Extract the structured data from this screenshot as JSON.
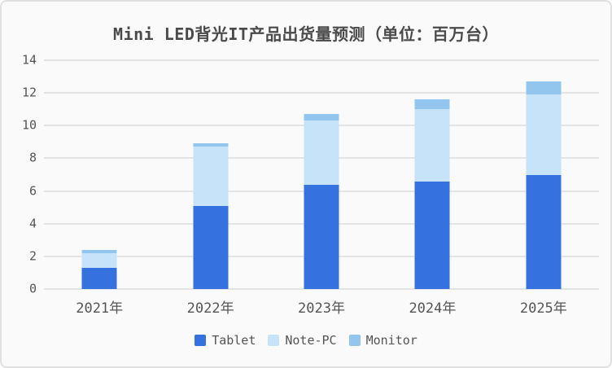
{
  "chart_data": {
    "type": "bar",
    "stacked": true,
    "title": "Mini LED背光IT产品出货量预测（单位：百万台）",
    "categories": [
      "2021年",
      "2022年",
      "2023年",
      "2024年",
      "2025年"
    ],
    "series": [
      {
        "name": "Tablet",
        "color": "#3671e0",
        "values": [
          1.3,
          5.1,
          6.4,
          6.6,
          7.0
        ]
      },
      {
        "name": "Note-PC",
        "color": "#c7e3fa",
        "values": [
          0.9,
          3.6,
          3.9,
          4.4,
          4.9
        ]
      },
      {
        "name": "Monitor",
        "color": "#93c6ef",
        "values": [
          0.2,
          0.2,
          0.4,
          0.6,
          0.8
        ]
      }
    ],
    "xlabel": "",
    "ylabel": "",
    "ylim": [
      0,
      14
    ],
    "yticks": [
      0,
      2,
      4,
      6,
      8,
      10,
      12,
      14
    ],
    "grid": true,
    "legend_position": "bottom"
  },
  "colors": {
    "background": "#fafafa",
    "card_border": "#e1e1e1",
    "gridline": "#e4e4e4",
    "title_text": "#4a4a4a",
    "axis_text": "#555555"
  }
}
